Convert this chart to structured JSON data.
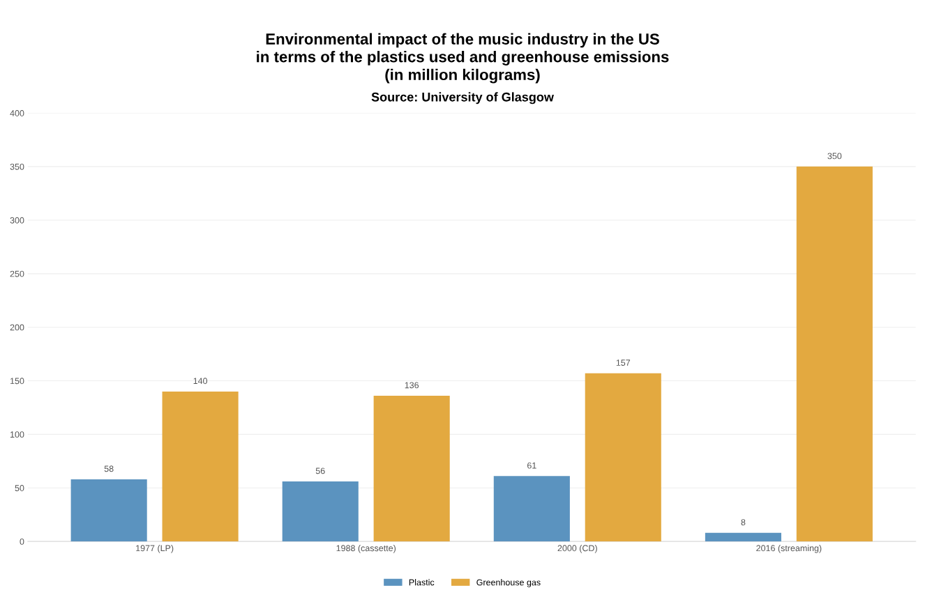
{
  "chart_data": {
    "type": "bar",
    "title": "Environmental impact of the music industry in the US\nin terms of the plastics used and greenhouse emissions\n(in million kilograms)",
    "subtitle": "Source: University of Glasgow",
    "categories": [
      "1977 (LP)",
      "1988 (cassette)",
      "2000 (CD)",
      "2016 (streaming)"
    ],
    "series": [
      {
        "name": "Plastic",
        "color": "#5b93bf",
        "values": [
          58,
          56,
          61,
          8
        ]
      },
      {
        "name": "Greenhouse gas",
        "color": "#e3a940",
        "values": [
          140,
          136,
          157,
          350
        ]
      }
    ],
    "ylim": [
      0,
      400
    ],
    "yticks": [
      0,
      50,
      100,
      150,
      200,
      250,
      300,
      350,
      400
    ],
    "grid": "y",
    "legend": "bottom",
    "data_labels": true
  }
}
